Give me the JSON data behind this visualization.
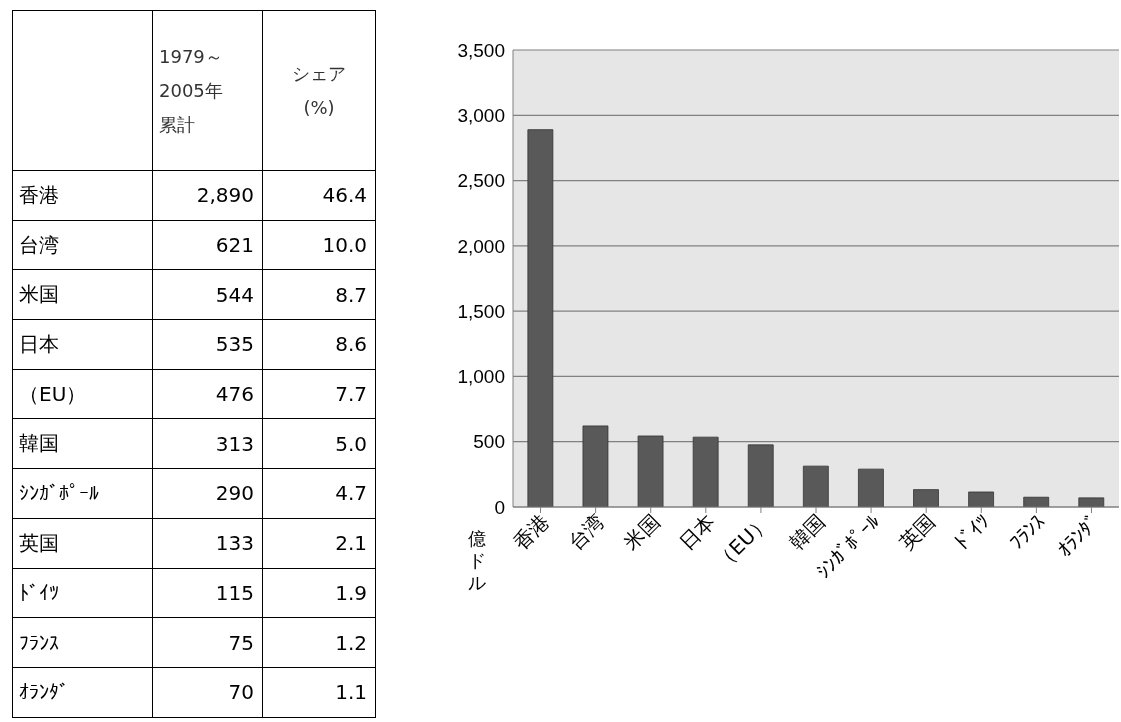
{
  "chart_data": [
    {
      "type": "other",
      "categories": [
        "香港",
        "台湾",
        "米国",
        "日本",
        "（EU）",
        "韓国",
        "ｼﾝｶﾞﾎﾟｰﾙ",
        "英国",
        "ﾄﾞｲﾂ",
        "ﾌﾗﾝｽ",
        "ｵﾗﾝﾀﾞ"
      ],
      "series": [
        {
          "name": "1979～2005年累計",
          "values": [
            2890,
            621,
            544,
            535,
            476,
            313,
            290,
            133,
            115,
            75,
            70
          ],
          "value_labels": [
            "2,890",
            "621",
            "544",
            "535",
            "476",
            "313",
            "290",
            "133",
            "115",
            "75",
            "70"
          ]
        },
        {
          "name": "シェア(%)",
          "values": [
            46.4,
            10.0,
            8.7,
            8.6,
            7.7,
            5.0,
            4.7,
            2.1,
            1.9,
            1.2,
            1.1
          ],
          "value_labels": [
            "46.4",
            "10.0",
            "8.7",
            "8.6",
            "7.7",
            "5.0",
            "4.7",
            "2.1",
            "1.9",
            "1.2",
            "1.1"
          ]
        }
      ]
    },
    {
      "type": "bar",
      "ylabel": "億ドル",
      "categories": [
        "香港",
        "台湾",
        "米国",
        "日本",
        "（EU）",
        "韓国",
        "ｼﾝｶﾞﾎﾟｰﾙ",
        "英国",
        "ﾄﾞｲﾂ",
        "ﾌﾗﾝｽ",
        "ｵﾗﾝﾀﾞ"
      ],
      "values": [
        2890,
        621,
        544,
        535,
        476,
        313,
        290,
        133,
        115,
        75,
        70
      ],
      "color": "#595959",
      "ylim": [
        0,
        3500
      ],
      "yticks": [
        0,
        500,
        {
          "value": 1000,
          "label": "1,000"
        },
        {
          "value": 1500,
          "label": "1,500"
        },
        {
          "value": 2000,
          "label": "2,000"
        },
        {
          "value": 2500,
          "label": "2,500"
        },
        {
          "value": 3000,
          "label": "3,000"
        },
        {
          "value": 3500,
          "label": "3,500"
        }
      ],
      "grid": "y"
    }
  ]
}
